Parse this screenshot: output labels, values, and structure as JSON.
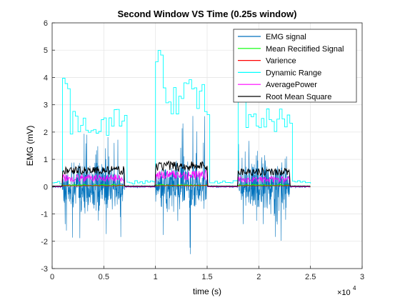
{
  "chart_data": {
    "type": "line",
    "title": "Second Window VS Time (0.25s window)",
    "xlabel": "time (s)",
    "ylabel": "EMG (mV)",
    "x_exponent_label": "×10",
    "x_exponent_power": "4",
    "xlim": [
      0,
      30000
    ],
    "ylim": [
      -3,
      6
    ],
    "xticks": [
      0,
      5000,
      10000,
      15000,
      20000,
      25000,
      30000
    ],
    "xtick_labels": [
      "0",
      "0.5",
      "1",
      "1.5",
      "2",
      "2.5",
      "3"
    ],
    "yticks": [
      -3,
      -2,
      -1,
      0,
      1,
      2,
      3,
      4,
      5,
      6
    ],
    "ytick_labels": [
      "-3",
      "-2",
      "-1",
      "0",
      "1",
      "2",
      "3",
      "4",
      "5",
      "6"
    ],
    "grid": true,
    "legend_position": "top-right",
    "bursts": [
      {
        "start": 1000,
        "end": 7000,
        "emg_max": 2.1,
        "emg_min": -1.9,
        "dynamic_range_level": 2.5,
        "dynamic_range_peak": 4.0,
        "rms_level": 0.6,
        "avg_power_level": 0.3
      },
      {
        "start": 10000,
        "end": 15000,
        "emg_max": 2.8,
        "emg_min": -2.6,
        "dynamic_range_level": 3.5,
        "dynamic_range_peak": 5.3,
        "rms_level": 0.75,
        "avg_power_level": 0.4
      },
      {
        "start": 18000,
        "end": 23000,
        "emg_max": 1.7,
        "emg_min": -2.0,
        "dynamic_range_level": 2.5,
        "dynamic_range_peak": 3.5,
        "rms_level": 0.55,
        "avg_power_level": 0.25
      }
    ],
    "baseline_end": 25000,
    "series": [
      {
        "name": "EMG signal",
        "color": "#0072BD"
      },
      {
        "name": "Mean Recitified Signal",
        "color": "#00FF00"
      },
      {
        "name": "Varience",
        "color": "#FF0000"
      },
      {
        "name": "Dynamic Range",
        "color": "#00FFFF"
      },
      {
        "name": "AveragePower",
        "color": "#FF00FF"
      },
      {
        "name": "Root Mean Square",
        "color": "#000000"
      }
    ]
  }
}
